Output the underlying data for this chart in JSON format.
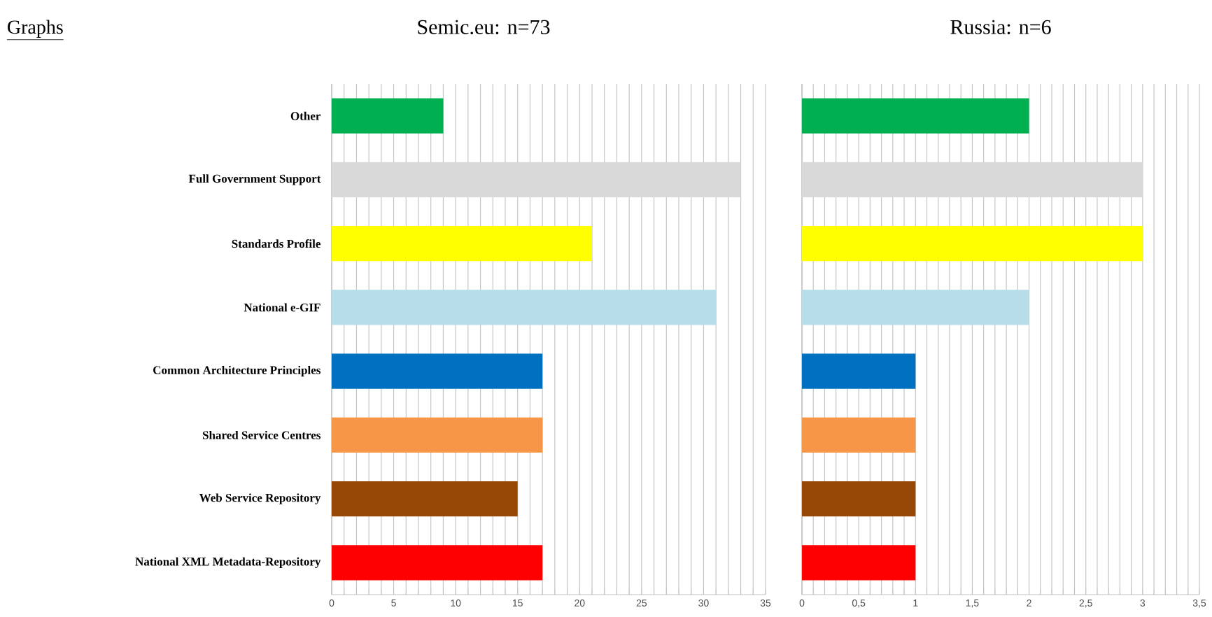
{
  "chart_data": [
    {
      "type": "bar",
      "orientation": "horizontal",
      "title": "Semic.eu: n=73",
      "annotations": [
        "Graphs"
      ],
      "categories": [
        "Other",
        "Full Government Support",
        "Standards Profile",
        "National e-GIF",
        "Common Architecture Principles",
        "Shared Service Centres",
        "Web Service Repository",
        "National XML Metadata-Repository"
      ],
      "series": [
        {
          "colors": [
            "#00b050",
            "#d9d9d9",
            "#ffff00",
            "#b7dde8",
            "#0070c0",
            "#f79646",
            "#974706",
            "#ff0000"
          ],
          "values": [
            9,
            33,
            21,
            31,
            17,
            17,
            15,
            17
          ]
        }
      ],
      "xlim": [
        0,
        35
      ],
      "xticks": [
        0,
        {
          "value": 1,
          "label": null
        },
        {
          "value": 2,
          "label": null
        },
        {
          "value": 3,
          "label": null
        },
        {
          "value": 4,
          "label": null
        },
        5,
        {
          "value": 6,
          "label": null
        },
        {
          "value": 7,
          "label": null
        },
        {
          "value": 8,
          "label": null
        },
        {
          "value": 9,
          "label": null
        },
        10,
        {
          "value": 11,
          "label": null
        },
        {
          "value": 12,
          "label": null
        },
        {
          "value": 13,
          "label": null
        },
        {
          "value": 14,
          "label": null
        },
        15,
        {
          "value": 16,
          "label": null
        },
        {
          "value": 17,
          "label": null
        },
        {
          "value": 18,
          "label": null
        },
        {
          "value": 19,
          "label": null
        },
        20,
        {
          "value": 21,
          "label": null
        },
        {
          "value": 22,
          "label": null
        },
        {
          "value": 23,
          "label": null
        },
        {
          "value": 24,
          "label": null
        },
        25,
        {
          "value": 26,
          "label": null
        },
        {
          "value": 27,
          "label": null
        },
        {
          "value": 28,
          "label": null
        },
        {
          "value": 29,
          "label": null
        },
        30,
        {
          "value": 31,
          "label": null
        },
        {
          "value": 32,
          "label": null
        },
        {
          "value": 33,
          "label": null
        },
        {
          "value": 34,
          "label": null
        },
        35
      ],
      "grid": "x"
    },
    {
      "type": "bar",
      "orientation": "horizontal",
      "title": "Russia: n=6",
      "tick_labels": "x",
      "categories": [
        null,
        null,
        null,
        null,
        null,
        null,
        null,
        null
      ],
      "series": [
        {
          "colors": [
            "#00b050",
            "#d9d9d9",
            "#ffff00",
            "#b7dde8",
            "#0070c0",
            "#f79646",
            "#974706",
            "#ff0000"
          ],
          "values": [
            2,
            3,
            3,
            2,
            1,
            1,
            1,
            1
          ]
        }
      ],
      "xlim": [
        0,
        3.5
      ],
      "xticks": [
        0,
        {
          "value": 0.1,
          "label": null
        },
        {
          "value": 0.2,
          "label": null
        },
        {
          "value": 0.3,
          "label": null
        },
        {
          "value": 0.4,
          "label": null
        },
        {
          "value": 0.5,
          "label": "0,5"
        },
        {
          "value": 0.6,
          "label": null
        },
        {
          "value": 0.7,
          "label": null
        },
        {
          "value": 0.8,
          "label": null
        },
        {
          "value": 0.9,
          "label": null
        },
        1,
        {
          "value": 1.1,
          "label": null
        },
        {
          "value": 1.2,
          "label": null
        },
        {
          "value": 1.3,
          "label": null
        },
        {
          "value": 1.4,
          "label": null
        },
        {
          "value": 1.5,
          "label": "1,5"
        },
        {
          "value": 1.6,
          "label": null
        },
        {
          "value": 1.7,
          "label": null
        },
        {
          "value": 1.8,
          "label": null
        },
        {
          "value": 1.9,
          "label": null
        },
        2,
        {
          "value": 2.1,
          "label": null
        },
        {
          "value": 2.2,
          "label": null
        },
        {
          "value": 2.3,
          "label": null
        },
        {
          "value": 2.4,
          "label": null
        },
        {
          "value": 2.5,
          "label": "2,5"
        },
        {
          "value": 2.6,
          "label": null
        },
        {
          "value": 2.7,
          "label": null
        },
        {
          "value": 2.8,
          "label": null
        },
        {
          "value": 2.9,
          "label": null
        },
        3,
        {
          "value": 3.1,
          "label": null
        },
        {
          "value": 3.2,
          "label": null
        },
        {
          "value": 3.3,
          "label": null
        },
        {
          "value": 3.4,
          "label": null
        },
        {
          "value": 3.5,
          "label": "3,5"
        }
      ],
      "grid": "x"
    }
  ]
}
